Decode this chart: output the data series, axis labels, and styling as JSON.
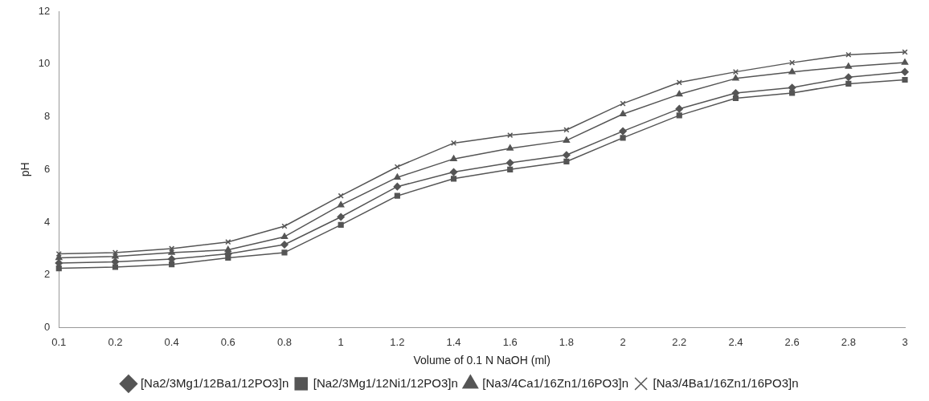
{
  "chart_data": {
    "type": "line",
    "xlabel": "Volume of 0.1 N NaOH (ml)",
    "ylabel": "pH",
    "categories": [
      "0.1",
      "0.2",
      "0.4",
      "0.6",
      "0.8",
      "1",
      "1.2",
      "1.4",
      "1.6",
      "1.8",
      "2",
      "2.2",
      "2.4",
      "2.6",
      "2.8",
      "3"
    ],
    "ylim": [
      0,
      12
    ],
    "yticks": [
      0,
      2,
      4,
      6,
      8,
      10,
      12
    ],
    "grid": false,
    "legend": "bottom",
    "line_style": "solid",
    "series": [
      {
        "name": "[Na2/3Mg1/12Ba1/12PO3]n",
        "color": "#555555",
        "marker": "diamond",
        "values": [
          2.45,
          2.5,
          2.6,
          2.8,
          3.15,
          4.2,
          5.35,
          5.9,
          6.25,
          6.55,
          7.45,
          8.3,
          8.9,
          9.1,
          9.5,
          9.7
        ]
      },
      {
        "name": "[Na2/3Mg1/12Ni1/12PO3]n",
        "color": "#555555",
        "marker": "square",
        "values": [
          2.25,
          2.3,
          2.4,
          2.65,
          2.85,
          3.9,
          5.0,
          5.65,
          6.0,
          6.3,
          7.2,
          8.05,
          8.7,
          8.9,
          9.25,
          9.4
        ]
      },
      {
        "name": "[Na3/4Ca1/16Zn1/16PO3]n",
        "color": "#555555",
        "marker": "triangle",
        "values": [
          2.65,
          2.7,
          2.85,
          2.95,
          3.45,
          4.65,
          5.7,
          6.4,
          6.8,
          7.1,
          8.1,
          8.85,
          9.45,
          9.7,
          9.9,
          10.05
        ]
      },
      {
        "name": "[Na3/4Ba1/16Zn1/16PO3]n",
        "color": "#555555",
        "marker": "cross",
        "values": [
          2.8,
          2.85,
          3.0,
          3.25,
          3.85,
          5.0,
          6.1,
          7.0,
          7.3,
          7.5,
          8.5,
          9.3,
          9.7,
          10.05,
          10.35,
          10.45
        ]
      }
    ]
  }
}
